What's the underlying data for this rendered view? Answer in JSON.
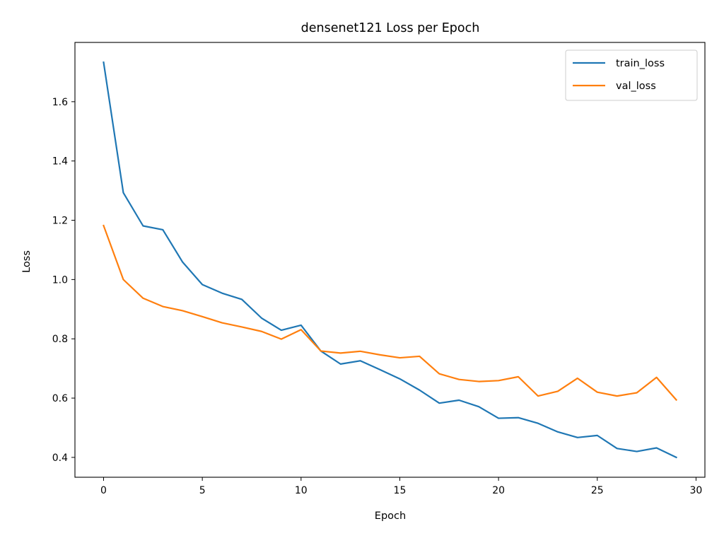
{
  "chart_data": {
    "type": "line",
    "title": "densenet121 Loss per Epoch",
    "xlabel": "Epoch",
    "ylabel": "Loss",
    "xlim": [
      -1.45,
      30.45
    ],
    "ylim": [
      0.333,
      1.8
    ],
    "xticks": [
      0,
      5,
      10,
      15,
      20,
      25,
      30
    ],
    "yticks": [
      0.4,
      0.6,
      0.8,
      1.0,
      1.2,
      1.4,
      1.6
    ],
    "grid": false,
    "legend_position": "top-right",
    "x": [
      0,
      1,
      2,
      3,
      4,
      5,
      6,
      7,
      8,
      9,
      10,
      11,
      12,
      13,
      14,
      15,
      16,
      17,
      18,
      19,
      20,
      21,
      22,
      23,
      24,
      25,
      26,
      27,
      28,
      29
    ],
    "series": [
      {
        "name": "train_loss",
        "color": "#1f77b4",
        "values": [
          1.733,
          1.293,
          1.181,
          1.168,
          1.059,
          0.983,
          0.954,
          0.933,
          0.87,
          0.829,
          0.846,
          0.759,
          0.715,
          0.726,
          0.696,
          0.665,
          0.627,
          0.583,
          0.593,
          0.571,
          0.532,
          0.534,
          0.515,
          0.486,
          0.467,
          0.474,
          0.43,
          0.42,
          0.432,
          0.4
        ]
      },
      {
        "name": "val_loss",
        "color": "#ff7f0e",
        "values": [
          1.182,
          1.0,
          0.937,
          0.909,
          0.895,
          0.875,
          0.854,
          0.84,
          0.825,
          0.799,
          0.831,
          0.759,
          0.752,
          0.758,
          0.746,
          0.736,
          0.741,
          0.682,
          0.663,
          0.656,
          0.659,
          0.672,
          0.607,
          0.623,
          0.667,
          0.62,
          0.607,
          0.618,
          0.67,
          0.594
        ]
      }
    ]
  }
}
